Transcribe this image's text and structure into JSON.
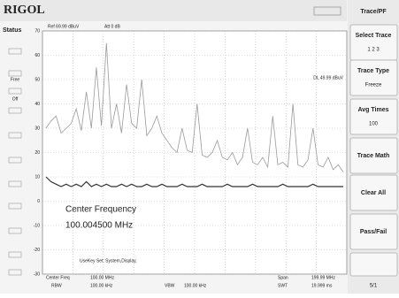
{
  "header": {
    "logo": "RIGOL",
    "status": "Status"
  },
  "status_items": [
    "Free",
    "Off"
  ],
  "plot_header": {
    "ref": "Ref 69.99 dBuV",
    "att": "Att 0 dB",
    "display_line": "DL 49.99 dBuV"
  },
  "overlay": {
    "caption": "Center Frequency",
    "value": "100.004500 MHz",
    "userkey": "UseKey Set:  System,Display,"
  },
  "footer": {
    "center_label": "Center Freq",
    "center_value": "100.00 MHz",
    "rbw_label": "RBW",
    "rbw_value": "100.00 kHz",
    "vbw_label": "VBW",
    "vbw_value": "100.00 kHz",
    "span_label": "Span",
    "span_value": "199.99 MHz",
    "swt_label": "SWT",
    "swt_value": "19.999 ms"
  },
  "menu": {
    "title": "Trace/PF",
    "buttons": [
      {
        "label": "Select Trace",
        "value": "1  2  3"
      },
      {
        "label": "Trace Type",
        "value": "Freeze"
      },
      {
        "label": "Avg Times",
        "value": "100"
      },
      {
        "label": "Trace Math"
      },
      {
        "label": "Clear All"
      },
      {
        "label": "Pass/Fail"
      }
    ],
    "page": "5/1"
  },
  "chart_data": {
    "type": "line",
    "ylim": [
      -30,
      70
    ],
    "yticks": [
      70,
      60,
      50,
      40,
      30,
      20,
      10,
      0,
      -10,
      -20,
      -30
    ],
    "grid": true,
    "series": [
      {
        "name": "Trace 1",
        "color": "#9a9a9a",
        "values": [
          30,
          33,
          35,
          28,
          30,
          32,
          38,
          29,
          45,
          30,
          55,
          31,
          65,
          30,
          40,
          28,
          48,
          32,
          30,
          50,
          27,
          30,
          35,
          28,
          25,
          22,
          20,
          30,
          21,
          20,
          40,
          19,
          18,
          20,
          25,
          18,
          17,
          20,
          15,
          18,
          30,
          16,
          15,
          18,
          14,
          35,
          15,
          16,
          14,
          40,
          15,
          14,
          17,
          30,
          15,
          14,
          18,
          13,
          15,
          12
        ]
      },
      {
        "name": "Trace 2",
        "color": "#333333",
        "values": [
          10,
          8,
          7,
          6,
          7,
          6,
          7,
          6,
          8,
          6,
          7,
          6,
          7,
          6,
          6,
          7,
          6,
          7,
          6,
          6,
          7,
          6,
          6,
          7,
          6,
          6,
          6,
          7,
          6,
          6,
          6,
          7,
          6,
          6,
          6,
          6,
          7,
          6,
          6,
          6,
          6,
          7,
          6,
          6,
          6,
          6,
          6,
          7,
          6,
          6,
          6,
          6,
          6,
          7,
          6,
          6,
          6,
          6,
          6,
          6
        ]
      }
    ]
  }
}
